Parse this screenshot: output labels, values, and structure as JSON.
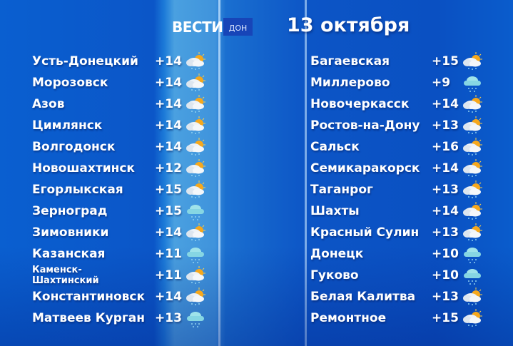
{
  "header": {
    "logo": "ВЕСТИ",
    "logo_sub": "ДОН",
    "date": "13 октября"
  },
  "colors": {
    "background": "#0b56c8",
    "text": "#ffffff"
  },
  "left": [
    {
      "city": "Усть-Донецкий",
      "temp": "+14",
      "icon": "partly-cloudy-rain-icon"
    },
    {
      "city": "Морозовск",
      "temp": "+14",
      "icon": "partly-cloudy-rain-icon"
    },
    {
      "city": "Азов",
      "temp": "+14",
      "icon": "partly-cloudy-rain-icon"
    },
    {
      "city": "Цимлянск",
      "temp": "+14",
      "icon": "partly-cloudy-rain-icon"
    },
    {
      "city": "Волгодонск",
      "temp": "+14",
      "icon": "partly-cloudy-rain-icon"
    },
    {
      "city": "Новошахтинск",
      "temp": "+12",
      "icon": "partly-cloudy-rain-icon"
    },
    {
      "city": "Егорлыкская",
      "temp": "+15",
      "icon": "partly-cloudy-rain-icon"
    },
    {
      "city": "Зерноград",
      "temp": "+15",
      "icon": "cloud-rain-icon"
    },
    {
      "city": "Зимовники",
      "temp": "+14",
      "icon": "partly-cloudy-rain-icon"
    },
    {
      "city": "Казанская",
      "temp": "+11",
      "icon": "cloud-rain-icon"
    },
    {
      "city": "Каменск-Шахтинский",
      "temp": "+11",
      "icon": "partly-cloudy-rain-icon",
      "small": true
    },
    {
      "city": "Константиновск",
      "temp": "+14",
      "icon": "partly-cloudy-rain-icon"
    },
    {
      "city": "Матвеев Курган",
      "temp": "+13",
      "icon": "cloud-rain-icon"
    }
  ],
  "right": [
    {
      "city": "Багаевская",
      "temp": "+15",
      "icon": "partly-cloudy-rain-icon"
    },
    {
      "city": "Миллерово",
      "temp": "+9",
      "icon": "cloud-rain-icon"
    },
    {
      "city": "Новочеркасск",
      "temp": "+14",
      "icon": "partly-cloudy-rain-icon"
    },
    {
      "city": "Ростов-на-Дону",
      "temp": "+13",
      "icon": "partly-cloudy-rain-icon"
    },
    {
      "city": "Сальск",
      "temp": "+16",
      "icon": "partly-cloudy-rain-icon"
    },
    {
      "city": "Семикаракорск",
      "temp": "+14",
      "icon": "partly-cloudy-rain-icon"
    },
    {
      "city": "Таганрог",
      "temp": "+13",
      "icon": "partly-cloudy-rain-icon"
    },
    {
      "city": "Шахты",
      "temp": "+14",
      "icon": "partly-cloudy-rain-icon"
    },
    {
      "city": "Красный Сулин",
      "temp": "+13",
      "icon": "partly-cloudy-rain-icon"
    },
    {
      "city": "Донецк",
      "temp": "+10",
      "icon": "cloud-rain-icon"
    },
    {
      "city": "Гуково",
      "temp": "+10",
      "icon": "cloud-rain-icon"
    },
    {
      "city": "Белая Калитва",
      "temp": "+13",
      "icon": "partly-cloudy-rain-icon"
    },
    {
      "city": "Ремонтное",
      "temp": "+15",
      "icon": "partly-cloudy-rain-icon"
    }
  ]
}
